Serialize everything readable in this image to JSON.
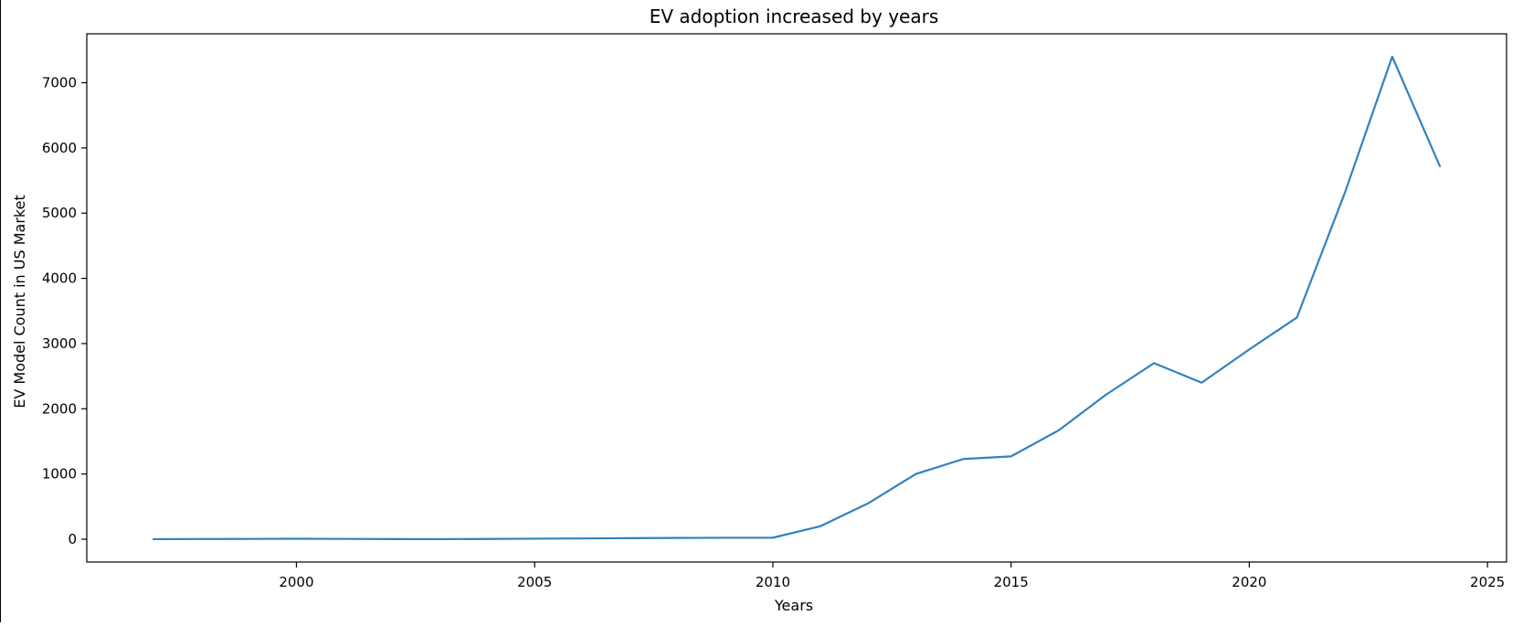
{
  "chart_data": {
    "type": "line",
    "title": "EV adoption increased by years",
    "xlabel": "Years",
    "ylabel": "EV Model Count in US Market",
    "xlim": [
      1995.6,
      2025.4
    ],
    "ylim": [
      -350,
      7750
    ],
    "xticks": [
      2000,
      2005,
      2010,
      2015,
      2020,
      2025
    ],
    "yticks": [
      0,
      1000,
      2000,
      3000,
      4000,
      5000,
      6000,
      7000
    ],
    "grid": false,
    "line_color": "#3182bd",
    "series": [
      {
        "x": [
          1997,
          1998,
          1999,
          2000,
          2001,
          2002,
          2003,
          2004,
          2005,
          2006,
          2007,
          2008,
          2009,
          2010,
          2011,
          2012,
          2013,
          2014,
          2015,
          2016,
          2017,
          2018,
          2019,
          2020,
          2021,
          2022,
          2023,
          2024
        ],
        "values": [
          1,
          3,
          5,
          7,
          5,
          2,
          1,
          4,
          8,
          12,
          16,
          20,
          22,
          23,
          200,
          550,
          1000,
          1230,
          1270,
          1670,
          2220,
          2700,
          2400,
          2910,
          3400,
          5300,
          7400,
          5720
        ]
      }
    ]
  }
}
